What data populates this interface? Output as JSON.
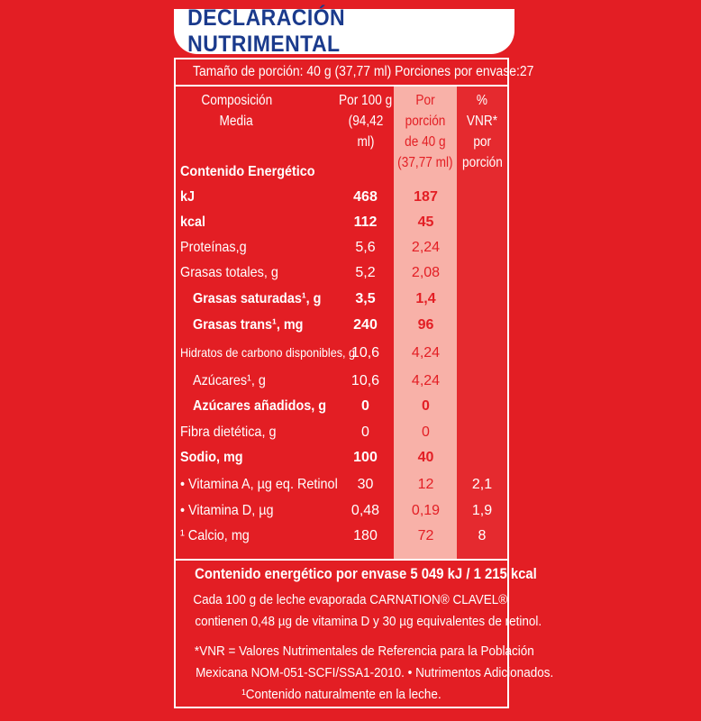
{
  "title": "DECLARACIÓN NUTRIMENTAL",
  "serving_line": "Tamaño de porción: 40 g (37,77 ml)  Porciones por envase:27",
  "headers": {
    "composition": [
      "Composición",
      "Media"
    ],
    "per100": [
      "Por 100 g",
      "(94,42 ml)"
    ],
    "perServing": [
      "Por porción",
      "de 40 g",
      "(37,77 ml)"
    ],
    "vnr": [
      "% VNR*",
      "por",
      "porción"
    ]
  },
  "section_energy": "Contenido Energético",
  "rows": [
    {
      "label": "kJ",
      "per100": "468",
      "serving": "187",
      "vnr": ""
    },
    {
      "label": "kcal",
      "per100": "112",
      "serving": "45",
      "vnr": ""
    },
    {
      "label": "Proteínas,g",
      "per100": "5,6",
      "serving": "2,24",
      "vnr": ""
    },
    {
      "label": "Grasas totales, g",
      "per100": "5,2",
      "serving": "2,08",
      "vnr": ""
    },
    {
      "label": "Grasas saturadas¹, g",
      "per100": "3,5",
      "serving": "1,4",
      "vnr": ""
    },
    {
      "label": "Grasas trans¹, mg",
      "per100": "240",
      "serving": "96",
      "vnr": ""
    },
    {
      "label": "Hidratos de carbono disponibles, g",
      "per100": "10,6",
      "serving": "4,24",
      "vnr": ""
    },
    {
      "label": "Azúcares¹, g",
      "per100": "10,6",
      "serving": "4,24",
      "vnr": ""
    },
    {
      "label": "Azúcares añadidos, g",
      "per100": "0",
      "serving": "0",
      "vnr": ""
    },
    {
      "label": "Fibra dietética, g",
      "per100": "0",
      "serving": "0",
      "vnr": ""
    },
    {
      "label": "Sodio, mg",
      "per100": "100",
      "serving": "40",
      "vnr": ""
    },
    {
      "label": "• Vitamina A, µg eq. Retinol",
      "per100": "30",
      "serving": "12",
      "vnr": "2,1"
    },
    {
      "label": "• Vitamina D, µg",
      "per100": "0,48",
      "serving": "0,19",
      "vnr": "1,9"
    },
    {
      "label": "¹ Calcio, mg",
      "per100": "180",
      "serving": "72",
      "vnr": "8"
    }
  ],
  "footer": {
    "total": "Contenido energético por envase 5 049 kJ / 1 215 kcal",
    "line1": "Cada 100 g de leche evaporada CARNATION® CLAVEL®",
    "line2": "contienen 0,48 µg de vitamina D y 30 µg equivalentes de retinol.",
    "line3": "*VNR = Valores Nutrimentales de Referencia para la Población",
    "line4": "Mexicana NOM-051-SCFI/SSA1-2010.  • Nutrimentos Adicionados.",
    "line5": "¹Contenido naturalmente en la leche."
  }
}
